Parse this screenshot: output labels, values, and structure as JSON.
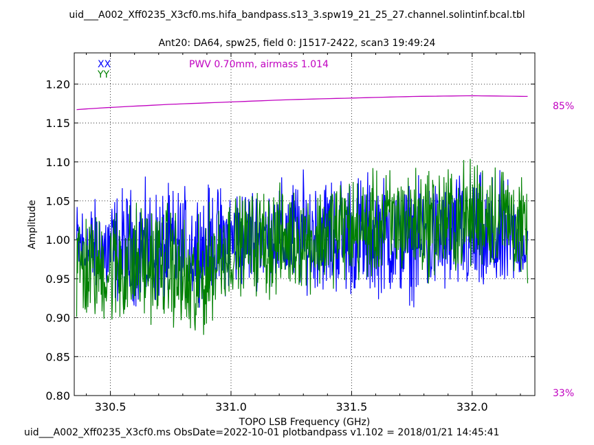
{
  "title": "uid___A002_Xff0235_X3cf0.ms.hifa_bandpass.s13_3.spw19_21_25_27.channel.solintinf.bcal.tbl",
  "subtitle": "Ant20: DA64,  spw25,  field 0: J1517-2422,  scan3  19:49:24",
  "footer": "uid___A002_Xff0235_X3cf0.ms  ObsDate=2022-10-01   plotbandpass v1.102 = 2018/01/21 14:45:41",
  "pwv_annotation": "PWV 0.70mm, airmass 1.014",
  "colors": {
    "XX": "#0000ff",
    "YY": "#008000",
    "atm": "#c000c0"
  },
  "chart_data": {
    "type": "line",
    "xlabel": "TOPO LSB Frequency (GHz)",
    "ylabel": "Amplitude",
    "xlim": [
      330.35,
      332.26
    ],
    "ylim": [
      0.8,
      1.24
    ],
    "x_ticks": [
      "330.5",
      "331.0",
      "331.5",
      "332.0"
    ],
    "x_tick_values": [
      330.5,
      331.0,
      331.5,
      332.0
    ],
    "y_ticks": [
      "0.80",
      "0.85",
      "0.90",
      "0.95",
      "1.00",
      "1.05",
      "1.10",
      "1.15",
      "1.20"
    ],
    "y_tick_values": [
      0.8,
      0.85,
      0.9,
      0.95,
      1.0,
      1.05,
      1.1,
      1.15,
      1.2
    ],
    "grid": true,
    "legend_position": "top-left",
    "channel_range_ghz": [
      330.36,
      332.23
    ],
    "series": [
      {
        "name": "XX",
        "x": [
          330.36,
          330.45,
          330.55,
          330.65,
          330.75,
          330.85,
          330.95,
          331.05,
          331.15,
          331.25,
          331.35,
          331.45,
          331.55,
          331.65,
          331.75,
          331.85,
          331.95,
          332.05,
          332.15,
          332.23
        ],
        "mean": [
          0.99,
          0.98,
          0.98,
          0.98,
          0.98,
          0.98,
          0.99,
          1.0,
          1.0,
          1.0,
          1.0,
          1.0,
          1.0,
          1.0,
          1.0,
          1.0,
          1.0,
          0.99,
          0.99,
          0.99
        ],
        "min": [
          0.93,
          0.91,
          0.9,
          0.9,
          0.9,
          0.91,
          0.91,
          0.92,
          0.93,
          0.92,
          0.92,
          0.91,
          0.91,
          0.91,
          0.9,
          0.91,
          0.91,
          0.91,
          0.92,
          0.95
        ],
        "max": [
          1.07,
          1.07,
          1.09,
          1.09,
          1.09,
          1.09,
          1.09,
          1.09,
          1.09,
          1.1,
          1.11,
          1.11,
          1.11,
          1.1,
          1.09,
          1.1,
          1.11,
          1.11,
          1.1,
          1.06
        ]
      },
      {
        "name": "YY",
        "x": [
          330.36,
          330.45,
          330.55,
          330.65,
          330.75,
          330.85,
          330.95,
          331.05,
          331.15,
          331.25,
          331.35,
          331.45,
          331.55,
          331.65,
          331.75,
          331.85,
          331.95,
          332.05,
          332.15,
          332.23
        ],
        "mean": [
          0.96,
          0.96,
          0.97,
          0.97,
          0.96,
          0.93,
          0.98,
          1.0,
          1.0,
          1.0,
          1.0,
          1.01,
          1.01,
          1.02,
          1.02,
          1.02,
          1.02,
          1.03,
          1.03,
          1.0
        ],
        "min": [
          0.87,
          0.88,
          0.86,
          0.88,
          0.88,
          0.83,
          0.9,
          0.92,
          0.9,
          0.92,
          0.92,
          0.93,
          0.93,
          0.93,
          0.94,
          0.93,
          0.94,
          0.95,
          0.94,
          0.93
        ],
        "max": [
          1.07,
          1.05,
          1.07,
          1.07,
          1.07,
          1.04,
          1.08,
          1.07,
          1.09,
          1.08,
          1.08,
          1.11,
          1.1,
          1.11,
          1.11,
          1.12,
          1.12,
          1.13,
          1.12,
          1.08
        ]
      }
    ],
    "atm_transmission": {
      "x": [
        330.35,
        330.5,
        330.75,
        331.0,
        331.25,
        331.5,
        331.75,
        332.0,
        332.25
      ],
      "y": [
        1.167,
        1.17,
        1.174,
        1.177,
        1.18,
        1.182,
        1.184,
        1.185,
        1.184
      ],
      "scale_top_label": "85%",
      "scale_bottom_label": "33%"
    }
  }
}
